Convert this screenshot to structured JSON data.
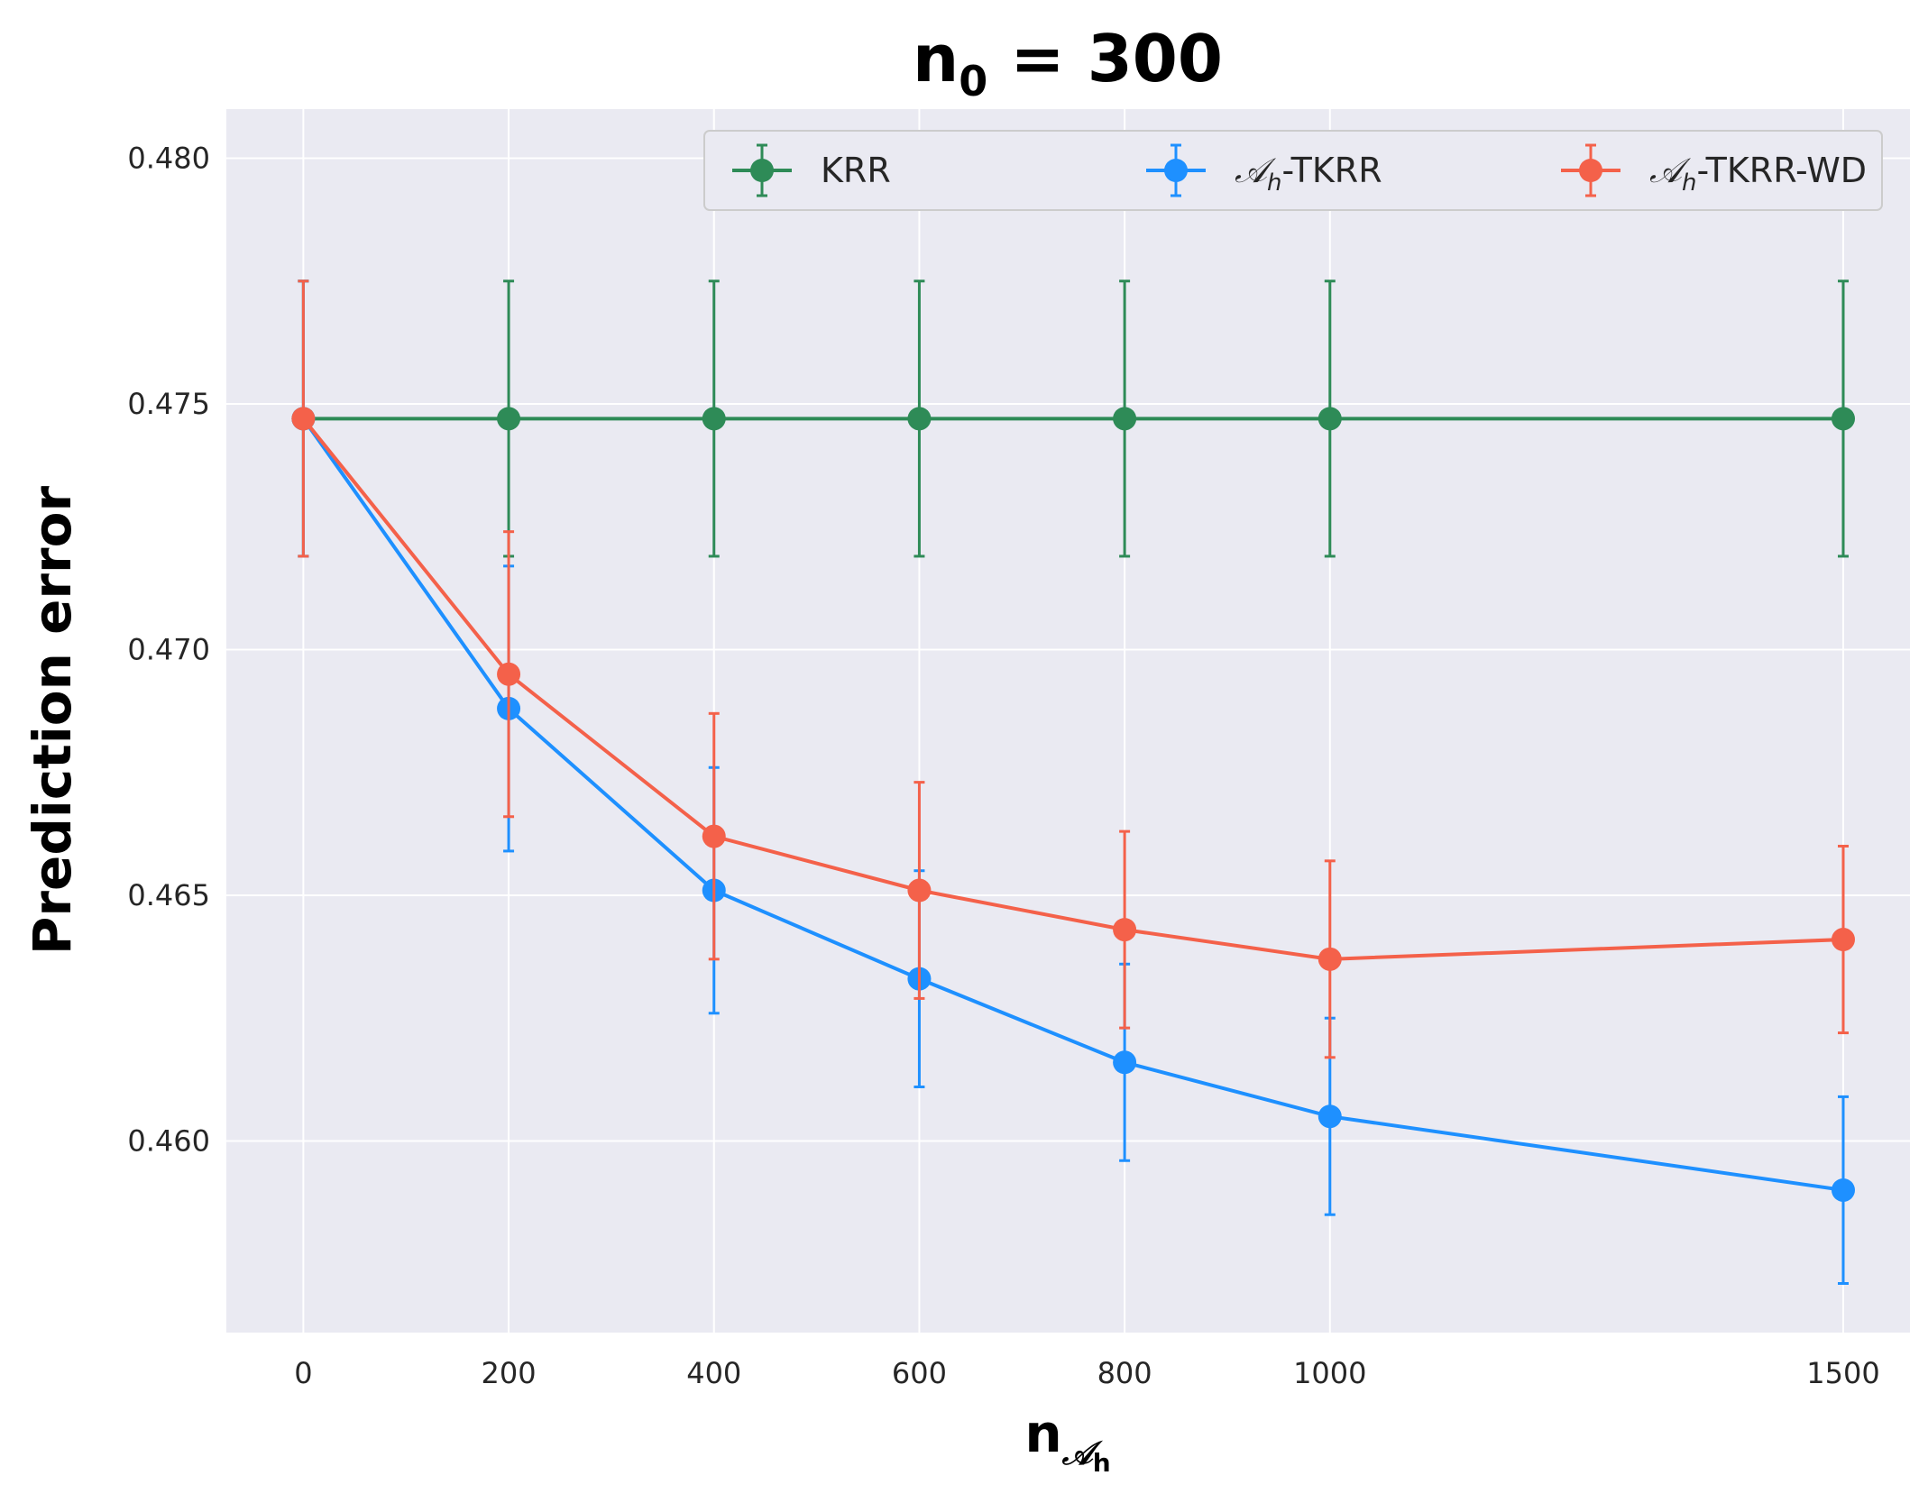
{
  "chart_data": {
    "type": "line",
    "title": "n",
    "title_subscript": "0",
    "title_suffix": " = 300",
    "xlabel": "n",
    "xlabel_subscript": "𝒜",
    "xlabel_subsubscript": "h",
    "ylabel": "Prediction error",
    "x_ticks": [
      0,
      200,
      400,
      600,
      800,
      1000,
      1500
    ],
    "x_tick_labels": [
      "0",
      "200",
      "400",
      "600",
      "800",
      "1000",
      "1500"
    ],
    "y_ticks": [
      0.46,
      0.465,
      0.47,
      0.475,
      0.48
    ],
    "y_tick_labels": [
      "0.460",
      "0.465",
      "0.470",
      "0.475",
      "0.480"
    ],
    "xlim": [
      -75,
      1565
    ],
    "ylim": [
      0.4561,
      0.481
    ],
    "grid": true,
    "legend_position": "top-right",
    "series": [
      {
        "name": "KRR",
        "color": "#2e8b57",
        "x": [
          0,
          200,
          400,
          600,
          800,
          1000,
          1500
        ],
        "y": [
          0.4747,
          0.4747,
          0.4747,
          0.4747,
          0.4747,
          0.4747,
          0.4747
        ],
        "err": [
          0.0028,
          0.0028,
          0.0028,
          0.0028,
          0.0028,
          0.0028,
          0.0028
        ]
      },
      {
        "name": "-TKRR",
        "name_prefix": "𝒜",
        "name_prefix_sub": "h",
        "color": "#1e90ff",
        "x": [
          0,
          200,
          400,
          600,
          800,
          1000,
          1500
        ],
        "y": [
          0.4747,
          0.4688,
          0.4651,
          0.4633,
          0.4616,
          0.4605,
          0.459
        ],
        "err": [
          0.0028,
          0.0029,
          0.0025,
          0.0022,
          0.002,
          0.002,
          0.0019
        ]
      },
      {
        "name": "-TKRR-WD",
        "name_prefix": "𝒜",
        "name_prefix_sub": "h",
        "color": "#f4614a",
        "x": [
          0,
          200,
          400,
          600,
          800,
          1000,
          1500
        ],
        "y": [
          0.4747,
          0.4695,
          0.4662,
          0.4651,
          0.4643,
          0.4637,
          0.4641
        ],
        "err": [
          0.0028,
          0.0029,
          0.0025,
          0.0022,
          0.002,
          0.002,
          0.0019
        ]
      }
    ]
  }
}
